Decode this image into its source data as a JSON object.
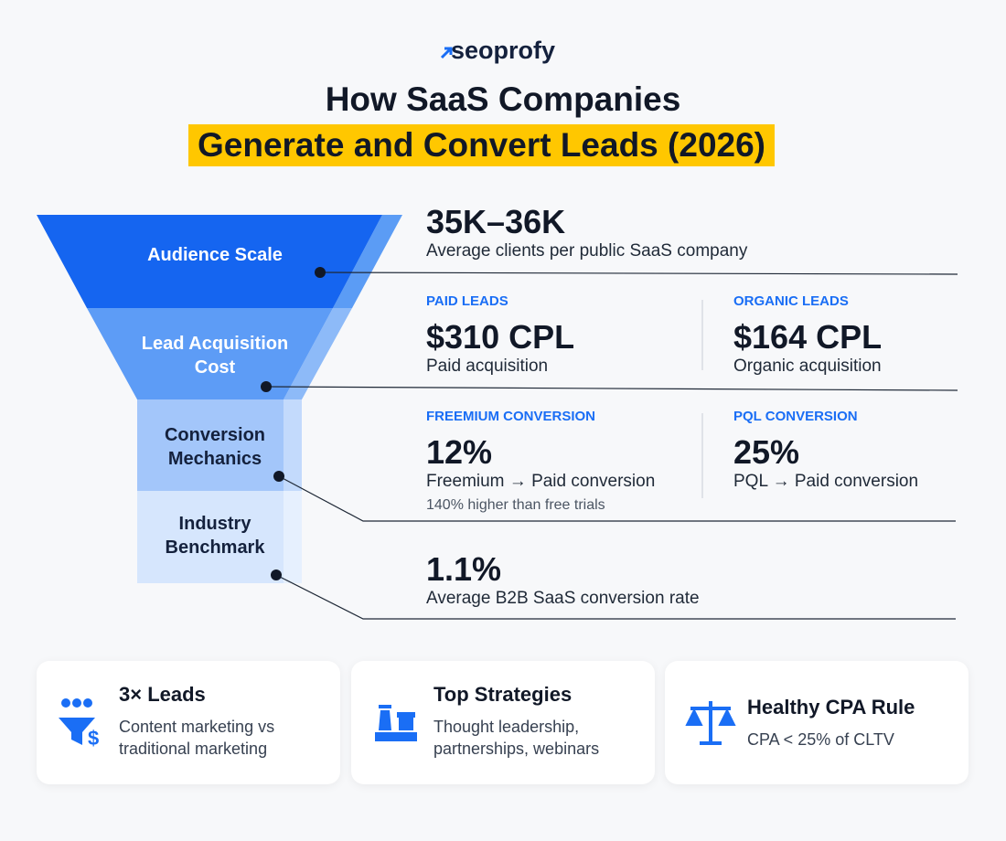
{
  "brand": "seoprofy",
  "title": {
    "line1": "How SaaS Companies",
    "line2": "Generate and Convert Leads (2026)"
  },
  "funnel": [
    "Audience Scale",
    "Lead Acquisition Cost",
    "Conversion Mechanics",
    "Industry Benchmark"
  ],
  "stats": {
    "audience": {
      "value": "35K–36K",
      "caption": "Average clients per public SaaS company"
    },
    "paid": {
      "label": "PAID LEADS",
      "value": "$310 CPL",
      "caption": "Paid acquisition"
    },
    "organic": {
      "label": "ORGANIC LEADS",
      "value": "$164 CPL",
      "caption": "Organic acquisition"
    },
    "freemium": {
      "label": "FREEMIUM CONVERSION",
      "value": "12%",
      "caption": "Freemium → Paid conversion",
      "note": "140% higher than free trials"
    },
    "pql": {
      "label": "PQL CONVERSION",
      "value": "25%",
      "caption": "PQL → Paid conversion"
    },
    "benchmark": {
      "value": "1.1%",
      "caption": "Average B2B SaaS conversion rate"
    }
  },
  "cards": [
    {
      "title": "3× Leads",
      "text": "Content marketing vs traditional marketing"
    },
    {
      "title": "Top Strategies",
      "text": "Thought leadership, partnerships, webinars"
    },
    {
      "title": "Healthy CPA Rule",
      "text": "CPA < 25% of CLTV"
    }
  ]
}
